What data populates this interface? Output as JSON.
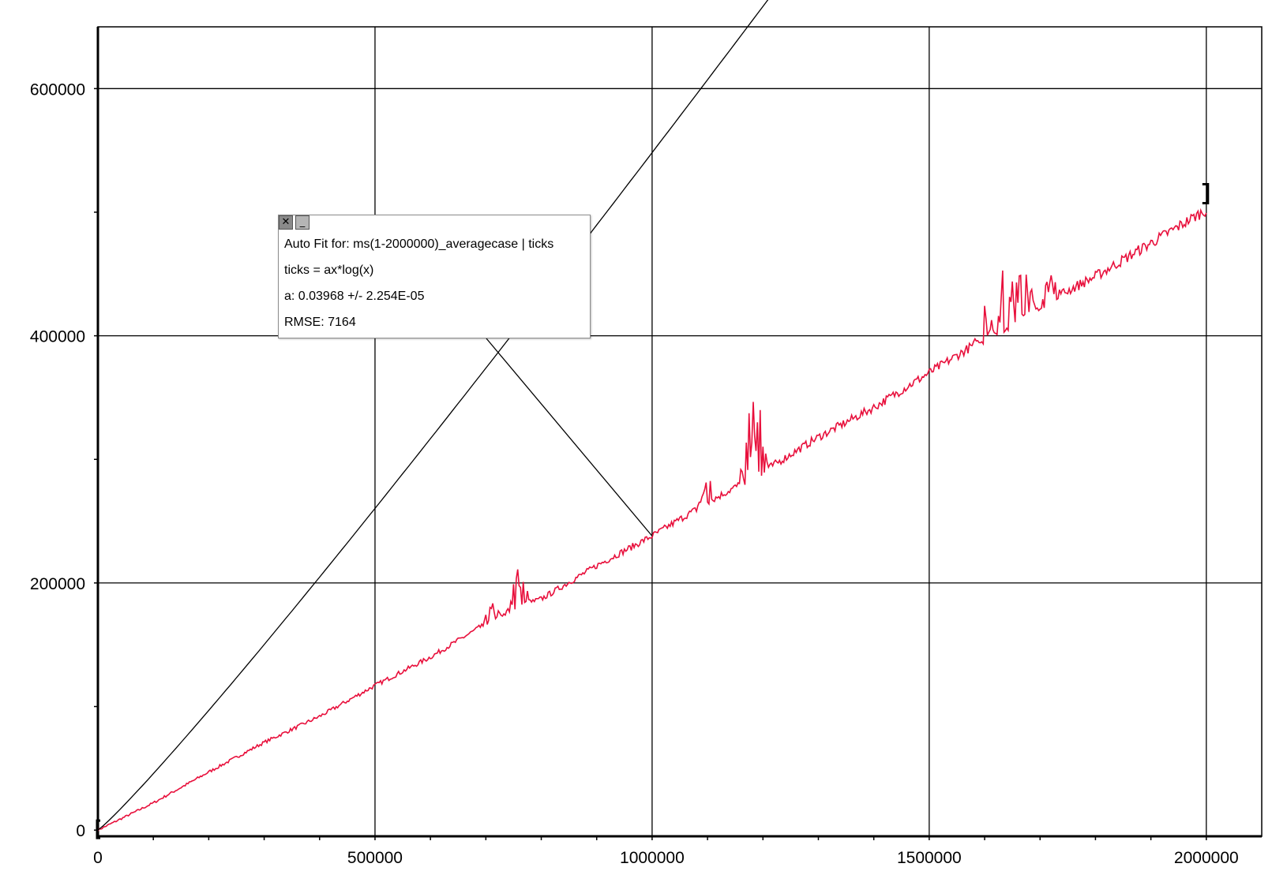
{
  "chart_data": {
    "type": "line",
    "title": "",
    "xlabel": "",
    "ylabel": "",
    "xlim": [
      0,
      2100000
    ],
    "ylim": [
      -5000,
      650000
    ],
    "x_ticks": [
      0,
      500000,
      1000000,
      1500000,
      2000000
    ],
    "x_tick_labels": [
      "0",
      "500000",
      "1000000",
      "1500000",
      "2000000"
    ],
    "y_ticks": [
      0,
      200000,
      400000,
      600000
    ],
    "y_tick_labels": [
      "0",
      "200000",
      "400000",
      "600000"
    ],
    "y_minor_ticks": [
      100000,
      300000,
      500000
    ],
    "grid": true,
    "series": [
      {
        "color": "#e8103c",
        "style": "noisy-line",
        "x": [
          0,
          100000,
          200000,
          300000,
          400000,
          500000,
          600000,
          700000,
          750000,
          800000,
          900000,
          1000000,
          1100000,
          1200000,
          1300000,
          1400000,
          1500000,
          1600000,
          1650000,
          1700000,
          1800000,
          1900000,
          2000000
        ],
        "y": [
          0,
          22000,
          47000,
          71000,
          92000,
          117000,
          140000,
          167000,
          180000,
          187000,
          214000,
          238000,
          265000,
          290000,
          318000,
          342000,
          370000,
          398000,
          410000,
          425000,
          448000,
          475000,
          502000
        ],
        "spikes": [
          {
            "x": 710000,
            "y": 180000
          },
          {
            "x": 760000,
            "y": 212000
          },
          {
            "x": 1100000,
            "y": 283000
          },
          {
            "x": 1175000,
            "y": 318000
          },
          {
            "x": 1190000,
            "y": 342000
          },
          {
            "x": 1600000,
            "y": 420000
          },
          {
            "x": 1640000,
            "y": 462000
          },
          {
            "x": 1670000,
            "y": 470000
          },
          {
            "x": 1720000,
            "y": 448000
          }
        ]
      },
      {
        "color": "#000000",
        "style": "fit-curve",
        "formula": "ticks = ax*log(x)",
        "a": 0.03968,
        "x_range": [
          0,
          2100000
        ]
      }
    ],
    "endpoint_markers": [
      {
        "x": 0,
        "y": 0
      },
      {
        "x": 2000000,
        "y": 515000
      }
    ]
  },
  "fit_box": {
    "close_icon": "close-icon",
    "minimize_icon": "minimize-icon",
    "close_glyph": "✕",
    "minimize_glyph": "_",
    "line1": "Auto Fit for: ms(1-2000000)_averagecase | ticks",
    "line2": "ticks = ax*log(x)",
    "line3": "a: 0.03968 +/- 2.254E-05",
    "line4": "RMSE: 7164",
    "pointer_target": {
      "x": 1000000,
      "y": 238000
    }
  }
}
